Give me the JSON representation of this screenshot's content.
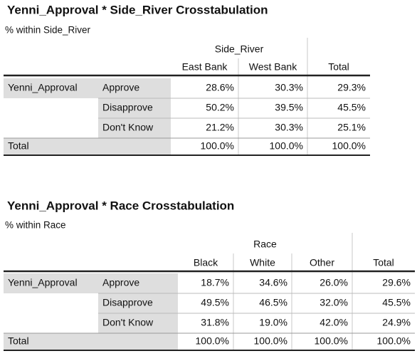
{
  "tables": [
    {
      "title": "Yenni_Approval * Side_River Crosstabulation",
      "subtitle": "% within Side_River",
      "group_header": "Side_River",
      "columns": [
        "East Bank",
        "West Bank",
        "Total"
      ],
      "row_variable": "Yenni_Approval",
      "rows": [
        {
          "label": "Approve",
          "cells": [
            "28.6%",
            "30.3%",
            "29.3%"
          ]
        },
        {
          "label": "Disapprove",
          "cells": [
            "50.2%",
            "39.5%",
            "45.5%"
          ]
        },
        {
          "label": "Don't Know",
          "cells": [
            "21.2%",
            "30.3%",
            "25.1%"
          ]
        }
      ],
      "total": {
        "label": "Total",
        "cells": [
          "100.0%",
          "100.0%",
          "100.0%"
        ]
      }
    },
    {
      "title": "Yenni_Approval * Race Crosstabulation",
      "subtitle": "% within Race",
      "group_header": "Race",
      "columns": [
        "Black",
        "White",
        "Other",
        "Total"
      ],
      "row_variable": "Yenni_Approval",
      "rows": [
        {
          "label": "Approve",
          "cells": [
            "18.7%",
            "34.6%",
            "26.0%",
            "29.6%"
          ]
        },
        {
          "label": "Disapprove",
          "cells": [
            "49.5%",
            "46.5%",
            "32.0%",
            "45.5%"
          ]
        },
        {
          "label": "Don't Know",
          "cells": [
            "31.8%",
            "19.0%",
            "42.0%",
            "24.9%"
          ]
        }
      ],
      "total": {
        "label": "Total",
        "cells": [
          "100.0%",
          "100.0%",
          "100.0%",
          "100.0%"
        ]
      }
    }
  ]
}
